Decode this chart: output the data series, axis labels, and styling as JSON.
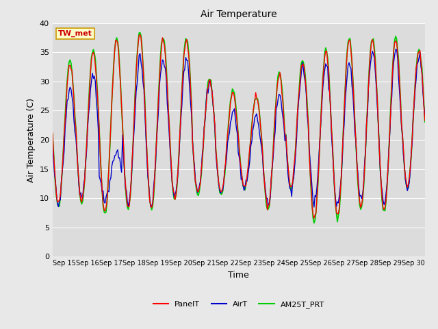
{
  "title": "Air Temperature",
  "xlabel": "Time",
  "ylabel": "Air Temperature (C)",
  "ylim": [
    0,
    40
  ],
  "yticks": [
    0,
    5,
    10,
    15,
    20,
    25,
    30,
    35,
    40
  ],
  "fig_bg_color": "#e8e8e8",
  "plot_bg_color": "#dcdcdc",
  "grid_color": "#ffffff",
  "annotation_text": "TW_met",
  "annotation_bg": "#ffffcc",
  "annotation_border": "#cc9900",
  "annotation_text_color": "#cc0000",
  "series": {
    "PanelT": {
      "color": "#ff0000",
      "linewidth": 1.0,
      "zorder": 3
    },
    "AirT": {
      "color": "#0000cc",
      "linewidth": 1.0,
      "zorder": 2
    },
    "AM25T_PRT": {
      "color": "#00cc00",
      "linewidth": 1.3,
      "zorder": 1
    }
  },
  "xticklabels": [
    "Sep 15",
    "Sep 16",
    "Sep 17",
    "Sep 18",
    "Sep 19",
    "Sep 20",
    "Sep 21",
    "Sep 22",
    "Sep 23",
    "Sep 24",
    "Sep 25",
    "Sep 26",
    "Sep 27",
    "Sep 28",
    "Sep 29",
    "Sep 30"
  ],
  "day_mins": [
    9.0,
    9.5,
    7.5,
    8.5,
    8.5,
    10.0,
    11.0,
    11.0,
    12.0,
    8.5,
    12.0,
    6.5,
    7.0,
    8.5,
    8.0,
    12.0
  ],
  "day_maxs": [
    33,
    35,
    37,
    38,
    37,
    37,
    30,
    28,
    27,
    31,
    33,
    35,
    37,
    37,
    37,
    35
  ],
  "day_mins_air": [
    9.0,
    10,
    10,
    9,
    9,
    10.5,
    11.5,
    11.0,
    11.5,
    9,
    11,
    9,
    8.5,
    10,
    9,
    12
  ],
  "day_maxs_air": [
    29,
    31,
    18,
    34,
    34,
    34,
    30,
    25,
    24,
    27.5,
    32.5,
    33,
    33,
    35,
    35,
    34
  ]
}
